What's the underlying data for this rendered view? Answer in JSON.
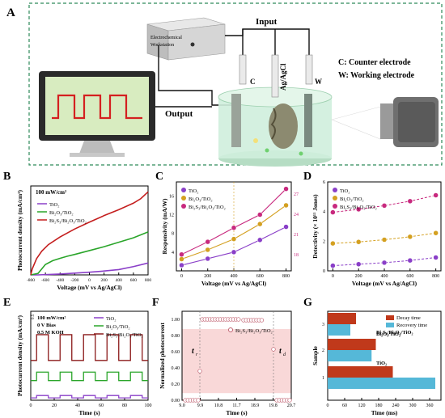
{
  "panel_a": {
    "letter": "A",
    "workstation": [
      "Electrochemical",
      "Workstation"
    ],
    "input_label": "Input",
    "output_label": "Output",
    "electrodes": [
      "C",
      "Ag/AgCl",
      "W"
    ],
    "legend": [
      "C: Counter electrode",
      "W: Working electrode"
    ]
  },
  "chart_data": [
    {
      "panel": "B",
      "type": "line",
      "annotation": "100 mW/cm²",
      "xlabel": "Voltage (mV vs Ag/AgCl)",
      "ylabel": "Photocurrent density (mA/cm²)",
      "xlim": [
        -800,
        800
      ],
      "xticks": [
        "-800",
        "-600",
        "-400",
        "-200",
        "0",
        "200",
        "400",
        "600",
        "800"
      ],
      "ylim": [
        0,
        3
      ],
      "series": [
        {
          "name": "TiO₂",
          "color": "#8a3fc8",
          "x": [
            -800,
            -700,
            -600,
            -400,
            -200,
            0,
            200,
            400,
            600,
            800
          ],
          "y": [
            0,
            0,
            0.01,
            0.03,
            0.06,
            0.09,
            0.13,
            0.18,
            0.28,
            0.4
          ]
        },
        {
          "name": "Bi₂O₃/TiO₂",
          "color": "#2aa52a",
          "x": [
            -800,
            -700,
            -600,
            -500,
            -400,
            -300,
            -200,
            0,
            200,
            400,
            600,
            800
          ],
          "y": [
            0,
            0.05,
            0.35,
            0.48,
            0.56,
            0.63,
            0.69,
            0.82,
            0.95,
            1.1,
            1.25,
            1.45
          ]
        },
        {
          "name": "Bi₂S₃/Bi₂O₃/TiO₂",
          "color": "#c41e1e",
          "x": [
            -800,
            -780,
            -720,
            -650,
            -560,
            -400,
            -200,
            0,
            200,
            400,
            600,
            700,
            800
          ],
          "y": [
            0,
            0.2,
            0.55,
            0.8,
            1.02,
            1.28,
            1.55,
            1.78,
            2.0,
            2.2,
            2.42,
            2.57,
            2.8
          ]
        }
      ]
    },
    {
      "panel": "C",
      "type": "line",
      "xlabel": "Voltage (mV vs Ag/AgCl)",
      "ylabel": "Responsivity (mA/W)",
      "xticks": [
        "0",
        "200",
        "400",
        "600",
        "800"
      ],
      "yticks_left": [
        "4",
        "8",
        "12",
        "16"
      ],
      "yticks_right": [
        "18",
        "21",
        "24",
        "27"
      ],
      "series": [
        {
          "name": "TiO₂",
          "color": "#8a3fc8",
          "x": [
            0,
            200,
            400,
            600,
            800
          ],
          "y": [
            1.2,
            2.6,
            4.0,
            6.6,
            9.4
          ]
        },
        {
          "name": "Bi₂O₃/TiO₂",
          "color": "#d4a020",
          "x": [
            0,
            200,
            400,
            600,
            800
          ],
          "y": [
            2.5,
            4.5,
            6.8,
            10.0,
            14.0
          ]
        },
        {
          "name": "Bi₂S₃/Bi₂O₃/TiO₂",
          "color": "#c8297e",
          "x": [
            0,
            200,
            400,
            600,
            800
          ],
          "y": [
            3.5,
            6.2,
            9.2,
            12.0,
            17.5
          ]
        }
      ]
    },
    {
      "panel": "D",
      "type": "line",
      "xlabel": "Voltage (mV vs Ag/AgCl)",
      "ylabel": "Detectivity (× 10¹¹ Jones)",
      "xticks": [
        "0",
        "200",
        "400",
        "600",
        "800"
      ],
      "yticks": [
        "0",
        "2",
        "4",
        "6"
      ],
      "ylim": [
        0,
        6
      ],
      "series": [
        {
          "name": "TiO₂",
          "color": "#8a3fc8",
          "x": [
            0,
            200,
            400,
            600,
            800
          ],
          "y": [
            0.35,
            0.45,
            0.55,
            0.7,
            0.9
          ]
        },
        {
          "name": "Bi₂O₃/TiO₂",
          "color": "#d4a020",
          "x": [
            0,
            200,
            400,
            600,
            800
          ],
          "y": [
            1.85,
            1.95,
            2.1,
            2.3,
            2.55
          ]
        },
        {
          "name": "Bi₂S₃/Bi₂O₃/TiO₂",
          "color": "#c8297e",
          "x": [
            0,
            200,
            400,
            600,
            800
          ],
          "y": [
            3.95,
            4.15,
            4.4,
            4.7,
            5.1
          ]
        }
      ]
    },
    {
      "panel": "E",
      "type": "line",
      "annotations": [
        "100 mW/cm²",
        "0 V Bias",
        "0.5 M KOH"
      ],
      "scale_label": "0.5",
      "xlabel": "Time (s)",
      "ylabel": "Photocurrent density (mA/cm²)",
      "xticks": [
        "0",
        "20",
        "40",
        "60",
        "80",
        "100"
      ],
      "series": [
        {
          "name": "TiO₂",
          "color": "#8a3fc8",
          "base": 0.05,
          "amp": 0.05
        },
        {
          "name": "Bi₂O₃/TiO₂",
          "color": "#2aa52a",
          "base": 0.42,
          "amp": 0.18
        },
        {
          "name": "Bi₂S₃/Bi₂O₃/TiO₂",
          "color": "#8b1a1a",
          "base": 0.85,
          "amp": 0.55
        }
      ],
      "on_periods": [
        [
          5,
          15
        ],
        [
          25,
          35
        ],
        [
          45,
          55
        ],
        [
          65,
          75
        ],
        [
          85,
          95
        ]
      ]
    },
    {
      "panel": "F",
      "type": "scatter",
      "legend": "Bi₂S₃/Bi₂O₃/TiO₂",
      "xlabel": "Time (s)",
      "ylabel": "Normalized photocurrent",
      "xticks": [
        "9.0",
        "9.9",
        "10.8",
        "11.7",
        "18.9",
        "19.8",
        "20.7"
      ],
      "yticks": [
        "0.00",
        "0.20",
        "0.40",
        "0.60",
        "0.80",
        "1.00"
      ],
      "ylim": [
        0,
        1.1
      ],
      "rise_label": "t",
      "rise_sub": "r",
      "decay_label": "t",
      "decay_sub": "d"
    },
    {
      "panel": "G",
      "type": "bar",
      "xlabel": "Time (ms)",
      "ylabel": "Sample",
      "xticks": [
        "0",
        "60",
        "120",
        "180",
        "240",
        "300",
        "360"
      ],
      "xlim": [
        0,
        400
      ],
      "categories": [
        "1",
        "2",
        "3"
      ],
      "sample_labels": [
        "TiO₂",
        "Bi₂O₃/TiO₂",
        "Bi₂S₃/Bi₂O₃/TiO₂"
      ],
      "series": [
        {
          "name": "Decay time",
          "color": "#c0391b",
          "values": [
            230,
            170,
            100
          ]
        },
        {
          "name": "Recovery time",
          "color": "#55b8d8",
          "values": [
            380,
            155,
            80
          ]
        }
      ]
    }
  ],
  "labels": {
    "b_letter": "B",
    "c_letter": "C",
    "d_letter": "D",
    "e_letter": "E",
    "f_letter": "F",
    "g_letter": "G"
  }
}
